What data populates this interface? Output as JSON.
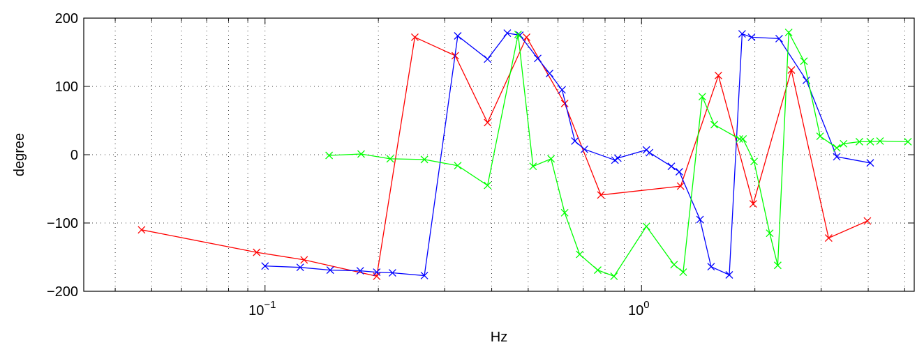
{
  "chart_data": {
    "type": "line",
    "xlabel": "Hz",
    "ylabel": "degree",
    "xscale": "log",
    "xlim": [
      0.033,
      5.3
    ],
    "ylim": [
      -200,
      200
    ],
    "grid": true,
    "legend": "none",
    "x_ticks": [
      {
        "value": 0.1,
        "base": "10",
        "exp": "−1"
      },
      {
        "value": 1,
        "base": "10",
        "exp": "0"
      }
    ],
    "y_ticks": [
      {
        "value": 200,
        "label": "200"
      },
      {
        "value": 100,
        "label": "100"
      },
      {
        "value": 0,
        "label": "0"
      },
      {
        "value": -100,
        "label": "−100"
      },
      {
        "value": -200,
        "label": "−200"
      }
    ],
    "marker": "x",
    "series": [
      {
        "color": "#ff0000",
        "x": [
          0.047,
          0.095,
          0.127,
          0.198,
          0.25,
          0.32,
          0.39,
          0.495,
          0.625,
          0.78,
          1.27,
          1.6,
          1.98,
          2.5,
          3.14,
          3.98
        ],
        "y": [
          -110,
          -143,
          -154,
          -178,
          172,
          145,
          47,
          172,
          75,
          -59,
          -46,
          116,
          -72,
          124,
          -122,
          -97
        ]
      },
      {
        "color": "#0000ff",
        "x": [
          0.1,
          0.124,
          0.149,
          0.179,
          0.198,
          0.218,
          0.265,
          0.325,
          0.39,
          0.44,
          0.475,
          0.53,
          0.57,
          0.615,
          0.665,
          0.705,
          0.85,
          0.865,
          1.03,
          1.05,
          1.2,
          1.26,
          1.43,
          1.53,
          1.71,
          1.85,
          1.96,
          2.32,
          2.74,
          3.3,
          4.05
        ],
        "y": [
          -163,
          -165,
          -169,
          -170,
          -172,
          -173,
          -177,
          174,
          140,
          178,
          175,
          141,
          119,
          95,
          20,
          8,
          -8,
          -5,
          7,
          3,
          -17,
          -25,
          -95,
          -164,
          -176,
          177,
          172,
          170,
          109,
          -3,
          -12
        ]
      },
      {
        "color": "#00ff00",
        "x": [
          0.148,
          0.18,
          0.215,
          0.265,
          0.325,
          0.39,
          0.47,
          0.515,
          0.575,
          0.625,
          0.685,
          0.765,
          0.845,
          1.03,
          1.22,
          1.29,
          1.45,
          1.56,
          1.82,
          1.86,
          1.99,
          2.19,
          2.3,
          2.46,
          2.7,
          2.98,
          3.3,
          3.44,
          3.79,
          4.05,
          4.3,
          5.1
        ],
        "y": [
          -1,
          1,
          -6,
          -7,
          -16,
          -45,
          176,
          -17,
          -6,
          -85,
          -146,
          -169,
          -178,
          -105,
          -161,
          -172,
          85,
          44,
          23,
          23,
          -10,
          -115,
          -162,
          179,
          137,
          27,
          10,
          16,
          19,
          19,
          20,
          19
        ]
      }
    ]
  }
}
